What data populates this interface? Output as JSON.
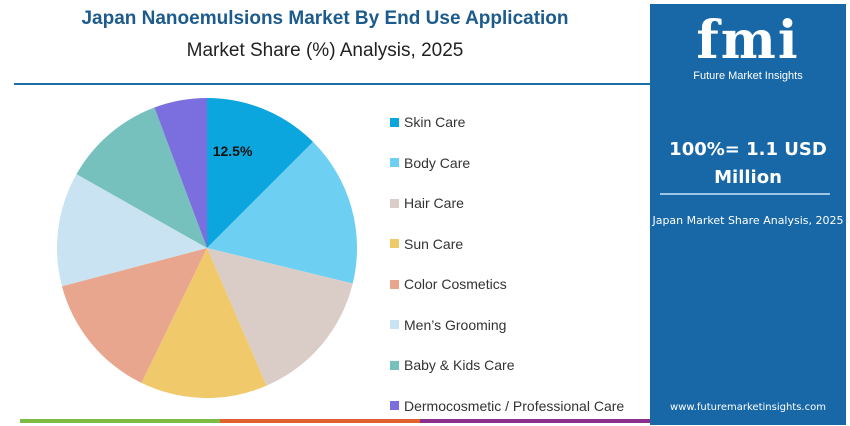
{
  "header": {
    "title": "Japan Nanoemulsions Market By End Use Application",
    "subtitle": "Market Share (%) Analysis, 2025"
  },
  "side": {
    "logo_text": "fmi",
    "logo_name": "Future Market Insights",
    "total": "100%= 1.1 USD Million",
    "description": "Japan Market Share Analysis, 2025",
    "url": "www.futuremarketinsights.com"
  },
  "chart_data": {
    "type": "pie",
    "categories": [
      "Skin Care",
      "Body Care",
      "Hair Care",
      "Sun Care",
      "Color Cosmetics",
      "Men’s Grooming",
      "Baby & Kids Care",
      "Dermocosmetic / Professional Care"
    ],
    "values": [
      12.5,
      16.3,
      14.7,
      13.7,
      13.7,
      12.3,
      11.1,
      5.7
    ],
    "colors": [
      "#0ba6dd",
      "#6dcff2",
      "#dacdc8",
      "#efc96a",
      "#e9a68f",
      "#c9e3f3",
      "#76c1bd",
      "#7b6fe0"
    ],
    "data_labels": [
      "12.5%",
      "",
      "",
      "",
      "",
      "",
      "",
      ""
    ],
    "legend": "right"
  },
  "footer_colors": [
    "#7dbb42",
    "#e0612c",
    "#8a2f8c"
  ]
}
